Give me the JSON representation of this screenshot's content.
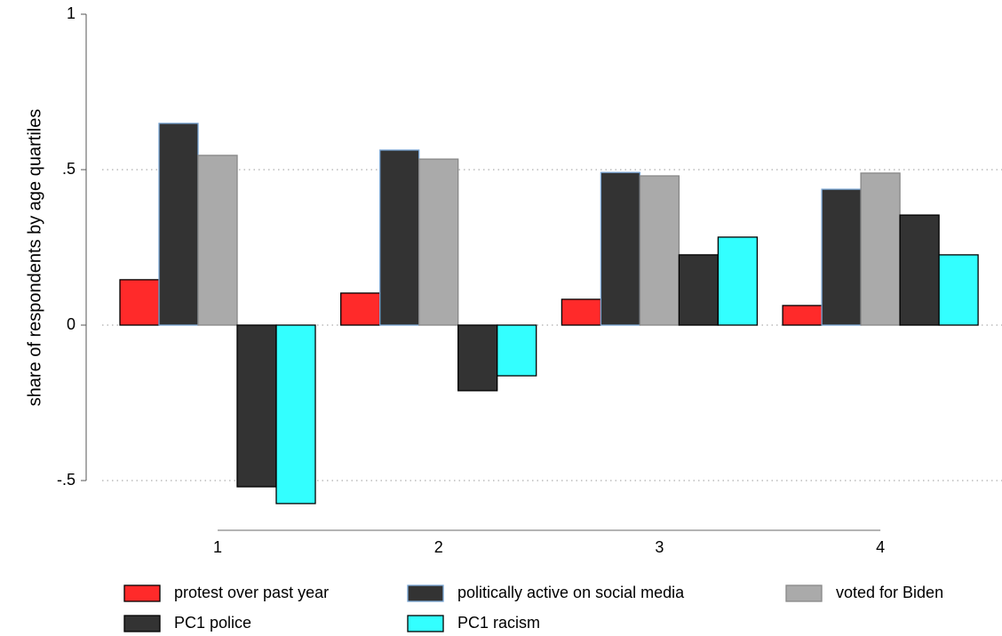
{
  "chart_data": {
    "type": "bar",
    "y_label": "share of respondents by age quartiles",
    "categories": [
      "1",
      "2",
      "3",
      "4"
    ],
    "series": [
      {
        "name": "protest over past year",
        "color": "#ff2a2a",
        "edgecolor": "#000000",
        "values": [
          0.146,
          0.103,
          0.083,
          0.063
        ]
      },
      {
        "name": "politically active on social media",
        "color": "#333333",
        "edgecolor": "#7aa6d4",
        "values": [
          0.649,
          0.563,
          0.491,
          0.437
        ]
      },
      {
        "name": "voted for Biden",
        "color": "#aaaaaa",
        "edgecolor": "#888888",
        "values": [
          0.546,
          0.534,
          0.48,
          0.489
        ]
      },
      {
        "name": "PC1 police",
        "color": "#333333",
        "edgecolor": "#000000",
        "values": [
          -0.52,
          -0.211,
          0.226,
          0.354
        ]
      },
      {
        "name": "PC1 racism",
        "color": "#33ffff",
        "edgecolor": "#000000",
        "values": [
          -0.574,
          -0.163,
          0.283,
          0.226
        ]
      }
    ],
    "ylim": [
      -0.6,
      1
    ],
    "yticks": [
      {
        "value": -0.5,
        "label": "-.5"
      },
      0,
      {
        "value": 0.5,
        "label": ".5"
      },
      1
    ],
    "grid": true
  }
}
